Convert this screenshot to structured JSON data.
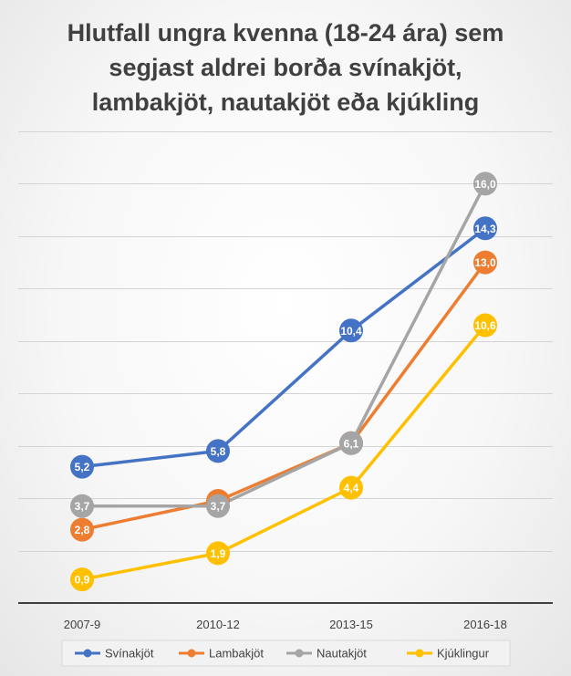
{
  "chart_data": {
    "type": "line",
    "title_lines": [
      "Hlutfall ungra kvenna (18-24 ára) sem",
      "segjast aldrei borða svínakjöt,",
      "lambakjöt, nautakjöt eða kjúkling"
    ],
    "categories": [
      "2007-9",
      "2010-12",
      "2013-15",
      "2016-18"
    ],
    "ylim": [
      0,
      18
    ],
    "y_tick_step": 2,
    "grid": true,
    "legend_position": "bottom",
    "series": [
      {
        "name": "Svínakjöt",
        "color": "#4472C4",
        "values": [
          5.2,
          5.8,
          10.4,
          14.3
        ],
        "labels": [
          "5,2",
          "5,8",
          "10,4",
          "14,3"
        ]
      },
      {
        "name": "Lambakjöt",
        "color": "#ED7D31",
        "values": [
          2.8,
          3.9,
          6.1,
          13.0
        ],
        "labels": [
          "2,8",
          "3,9",
          "6,1",
          "13,0"
        ]
      },
      {
        "name": "Nautakjöt",
        "color": "#A5A5A5",
        "values": [
          3.7,
          3.7,
          6.1,
          16.0
        ],
        "labels": [
          "3,7",
          "3,7",
          "6,1",
          "16,0"
        ]
      },
      {
        "name": "Kjúklingur",
        "color": "#FFC000",
        "values": [
          0.9,
          1.9,
          4.4,
          10.6
        ],
        "labels": [
          "0,9",
          "1,9",
          "4,4",
          "10,6"
        ]
      }
    ]
  }
}
